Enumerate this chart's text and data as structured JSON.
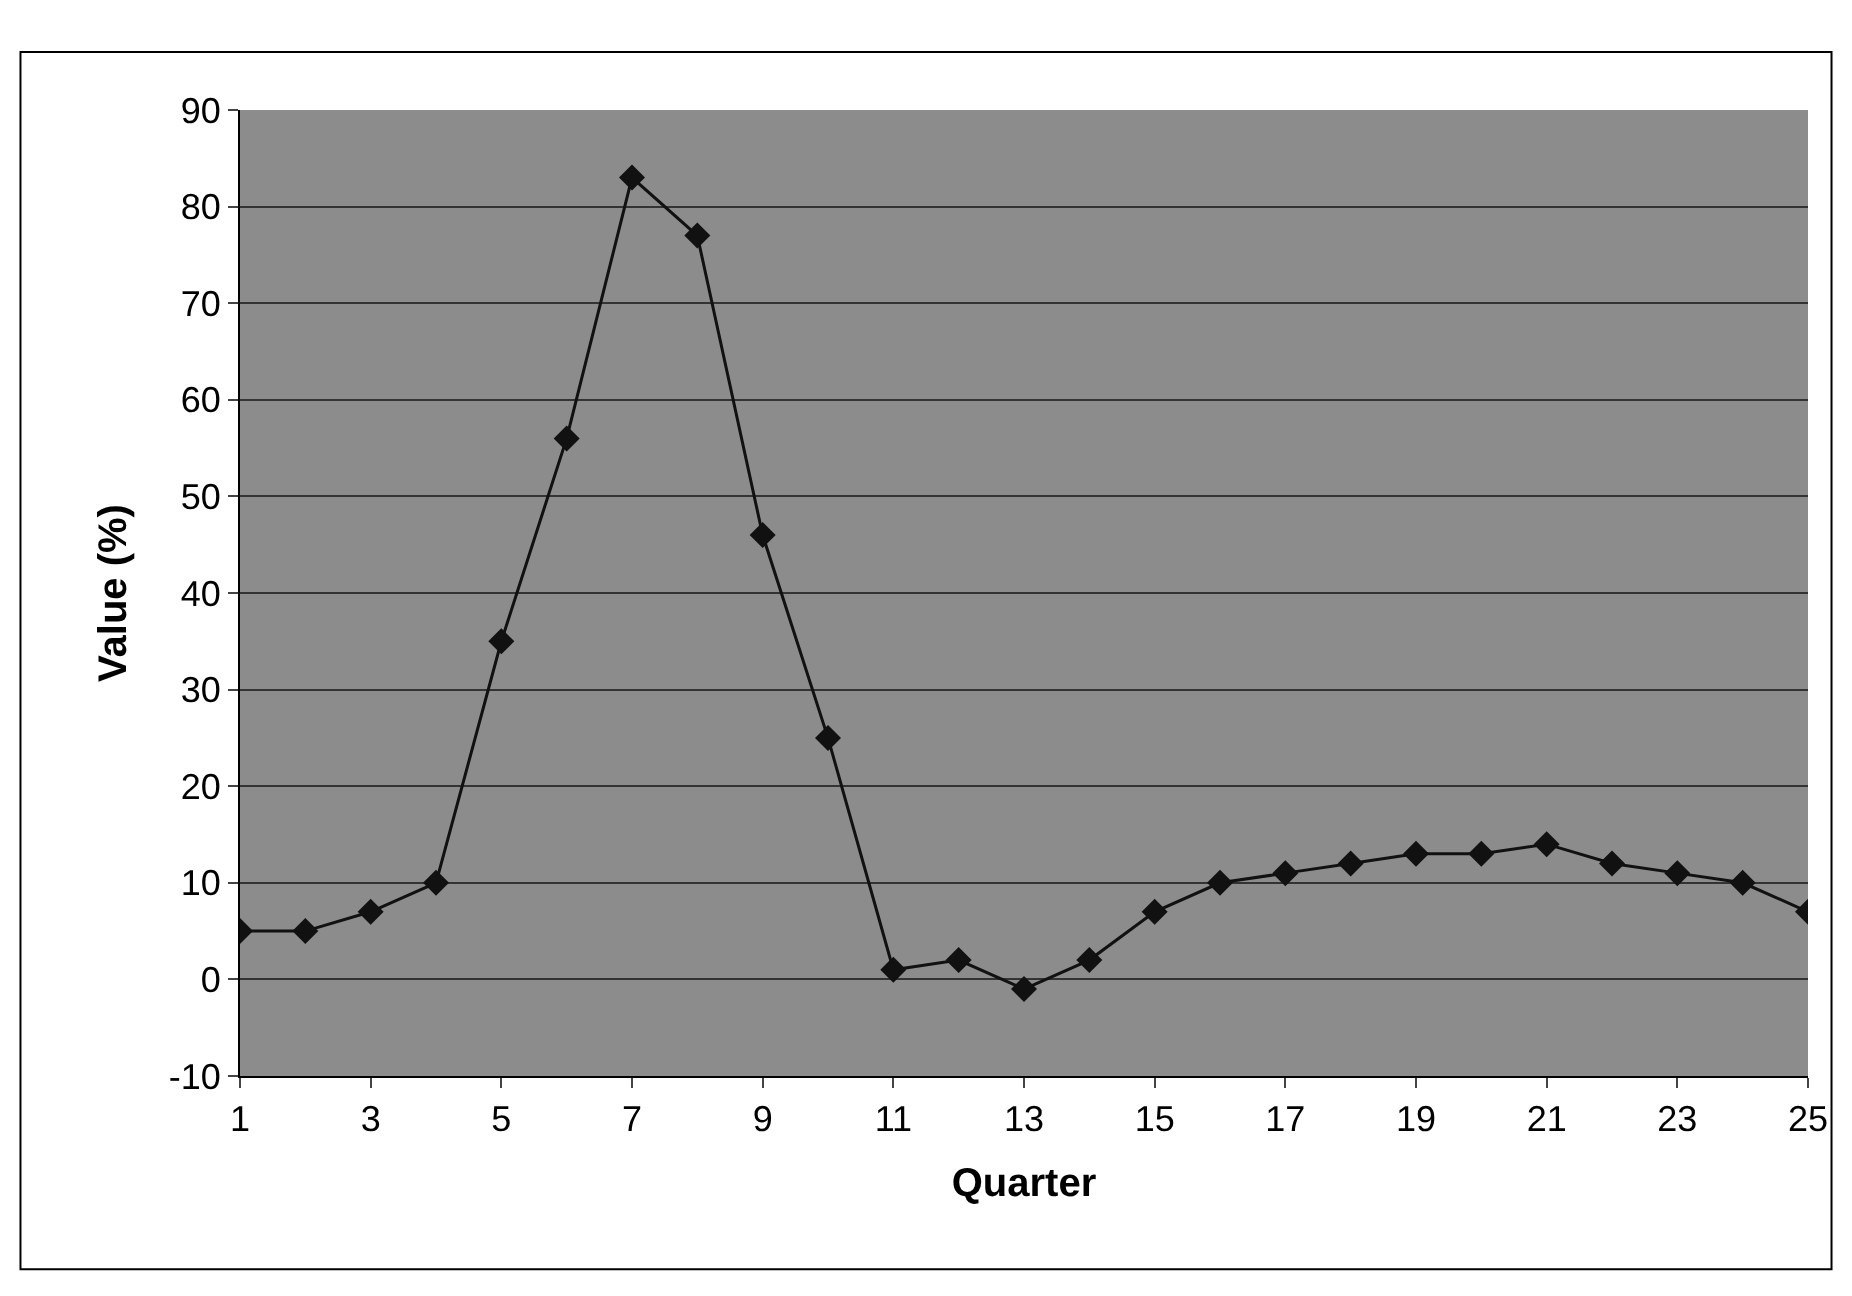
{
  "chart_data": {
    "type": "line",
    "xlabel": "Quarter",
    "ylabel": "Value (%)",
    "x": [
      1,
      2,
      3,
      4,
      5,
      6,
      7,
      8,
      9,
      10,
      11,
      12,
      13,
      14,
      15,
      16,
      17,
      18,
      19,
      20,
      21,
      22,
      23,
      24,
      25
    ],
    "values": [
      5,
      5,
      7,
      10,
      35,
      56,
      83,
      77,
      46,
      25,
      1,
      2,
      -1,
      2,
      7,
      10,
      11,
      12,
      13,
      13,
      14,
      12,
      11,
      10,
      7
    ],
    "color": "#111111",
    "marker": "diamond",
    "grid": "y",
    "xlim": [
      1,
      25
    ],
    "xticks": [
      1,
      3,
      5,
      7,
      9,
      11,
      13,
      15,
      17,
      19,
      21,
      23,
      25
    ],
    "ylim": [
      -10,
      90
    ],
    "yticks": [
      -10,
      0,
      10,
      20,
      30,
      40,
      50,
      60,
      70,
      80,
      90
    ]
  }
}
